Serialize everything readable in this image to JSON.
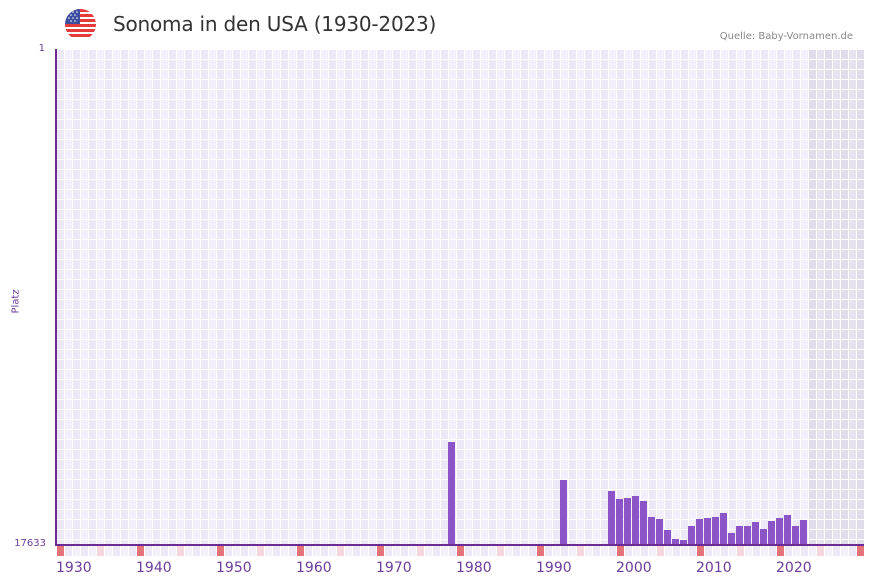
{
  "header": {
    "title": "Sonoma in den USA (1930-2023)",
    "source": "Quelle: Baby-Vornamen.de",
    "flag_icon": "usa-flag-icon"
  },
  "colors": {
    "bar": "#8b55c7",
    "axis": "#6a2c91",
    "grid_cell_a": "#ede8f8",
    "grid_cell_b": "#f3f0fb",
    "future_cell_a": "#e0dcec",
    "future_cell_b": "#e6e3ef",
    "decade_marker": "#e5737a",
    "half_decade_marker": "#f6d7df",
    "label": "#6a3d9a"
  },
  "chart_data": {
    "type": "bar",
    "title": "Sonoma in den USA (1930-2023)",
    "xlabel": "",
    "ylabel": "Platz",
    "y_inverted": true,
    "ylim": [
      1,
      17633
    ],
    "yticks": [
      "1",
      "17633"
    ],
    "xlim": [
      1930,
      2030
    ],
    "xticks": [
      "1930",
      "1940",
      "1950",
      "1960",
      "1970",
      "1980",
      "1990",
      "2000",
      "2010",
      "2020"
    ],
    "grid": true,
    "legend": null,
    "future_shaded_from": 2024,
    "categories": [
      1979,
      1993,
      1999,
      2000,
      2001,
      2002,
      2003,
      2004,
      2005,
      2006,
      2007,
      2008,
      2009,
      2010,
      2011,
      2012,
      2013,
      2014,
      2015,
      2016,
      2017,
      2018,
      2019,
      2020,
      2021,
      2022,
      2023
    ],
    "values": [
      14000,
      15353,
      15745,
      16030,
      15994,
      15923,
      16101,
      16671,
      16742,
      17134,
      17455,
      17490,
      16992,
      16742,
      16707,
      16671,
      16528,
      17241,
      16992,
      16992,
      16849,
      17098,
      16813,
      16707,
      16600,
      16992,
      16778
    ]
  }
}
